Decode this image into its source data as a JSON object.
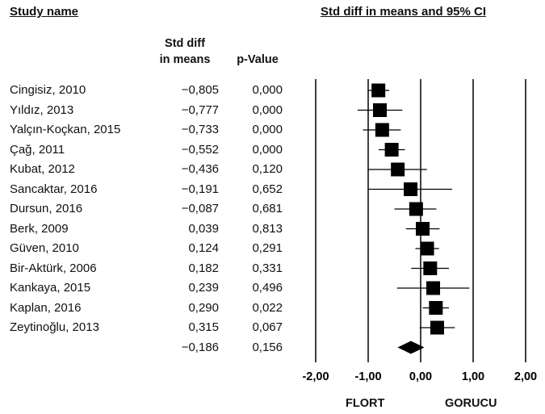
{
  "headers": {
    "study": "Study name",
    "plot": "Std diff in means and 95% CI",
    "stat_line1": "Std diff",
    "stat_line2": "in means",
    "pvalue": "p-Value"
  },
  "labels": {
    "left": "FLORT",
    "right": "GORUCU"
  },
  "chart_data": {
    "type": "forest",
    "title": "Std diff in means and 95% CI",
    "x_ticks": [
      "-2,00",
      "-1,00",
      "0,00",
      "1,00",
      "2,00"
    ],
    "xlim": [
      -2,
      2
    ],
    "studies": [
      {
        "name": "Cingisiz, 2010",
        "smd_text": "-0,805",
        "p_text": "0,000",
        "smd": -0.805,
        "lower": -1.0,
        "upper": -0.6
      },
      {
        "name": "Yıldız, 2013",
        "smd_text": "-0,777",
        "p_text": "0,000",
        "smd": -0.777,
        "lower": -1.2,
        "upper": -0.35
      },
      {
        "name": "Yalçın-Koçkan, 2015",
        "smd_text": "-0,733",
        "p_text": "0,000",
        "smd": -0.733,
        "lower": -1.1,
        "upper": -0.38
      },
      {
        "name": "Çağ, 2011",
        "smd_text": "-0,552",
        "p_text": "0,000",
        "smd": -0.552,
        "lower": -0.8,
        "upper": -0.3
      },
      {
        "name": "Kubat, 2012",
        "smd_text": "-0,436",
        "p_text": "0,120",
        "smd": -0.436,
        "lower": -1.0,
        "upper": 0.12
      },
      {
        "name": "Sancaktar, 2016",
        "smd_text": "-0,191",
        "p_text": "0,652",
        "smd": -0.191,
        "lower": -1.0,
        "upper": 0.6
      },
      {
        "name": "Dursun, 2016",
        "smd_text": "-0,087",
        "p_text": "0,681",
        "smd": -0.087,
        "lower": -0.5,
        "upper": 0.3
      },
      {
        "name": "Berk, 2009",
        "smd_text": "0,039",
        "p_text": "0,813",
        "smd": 0.039,
        "lower": -0.28,
        "upper": 0.36
      },
      {
        "name": "Güven, 2010",
        "smd_text": "0,124",
        "p_text": "0,291",
        "smd": 0.124,
        "lower": -0.1,
        "upper": 0.35
      },
      {
        "name": "Bir-Aktürk, 2006",
        "smd_text": "0,182",
        "p_text": "0,331",
        "smd": 0.182,
        "lower": -0.18,
        "upper": 0.54
      },
      {
        "name": "Kankaya, 2015",
        "smd_text": "0,239",
        "p_text": "0,496",
        "smd": 0.239,
        "lower": -0.45,
        "upper": 0.93
      },
      {
        "name": "Kaplan, 2016",
        "smd_text": "0,290",
        "p_text": "0,022",
        "smd": 0.29,
        "lower": 0.04,
        "upper": 0.54
      },
      {
        "name": "Zeytinoğlu, 2013",
        "smd_text": "0,315",
        "p_text": "0,067",
        "smd": 0.315,
        "lower": -0.02,
        "upper": 0.65
      }
    ],
    "summary": {
      "smd_text": "-0,186",
      "p_text": "0,156",
      "smd": -0.186,
      "lower": -0.44,
      "upper": 0.07
    },
    "colors": {
      "ink": "#000000"
    }
  }
}
